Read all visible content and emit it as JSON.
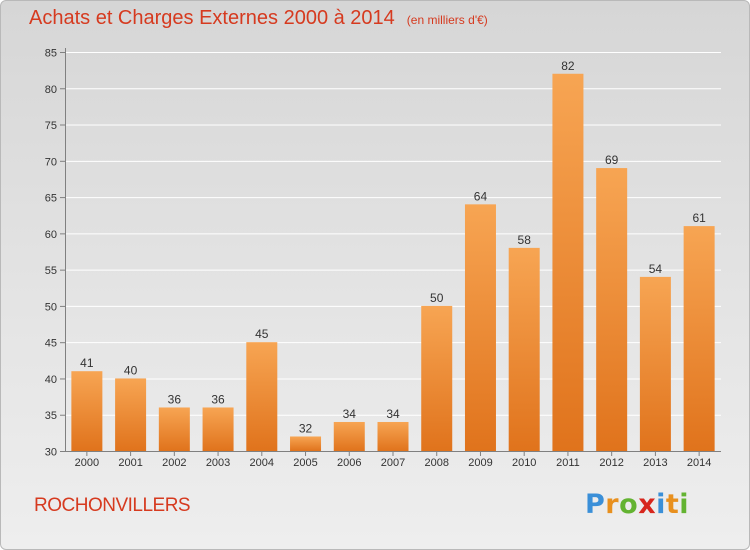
{
  "page": {
    "title": "Achats et Charges Externes 2000 à 2014",
    "unit_note": "(en milliers d'€)",
    "place": "ROCHONVILLERS",
    "brand": {
      "letters": [
        "P",
        "r",
        "o",
        "x",
        "i",
        "t",
        "i"
      ],
      "colors": [
        "#3a8fd8",
        "#e8901e",
        "#63b331",
        "#d7261d",
        "#3a8fd8",
        "#e8901e",
        "#63b331"
      ]
    }
  },
  "chart_data": {
    "type": "bar",
    "title": "Achats et Charges Externes 2000 à 2014",
    "subtitle": "(en milliers d'€)",
    "categories": [
      "2000",
      "2001",
      "2002",
      "2003",
      "2004",
      "2005",
      "2006",
      "2007",
      "2008",
      "2009",
      "2010",
      "2011",
      "2012",
      "2013",
      "2014"
    ],
    "values": [
      41,
      40,
      36,
      36,
      45,
      32,
      34,
      34,
      50,
      64,
      58,
      82,
      69,
      54,
      61
    ],
    "ylim": [
      30,
      85
    ],
    "yticks": [
      30,
      35,
      40,
      45,
      50,
      55,
      60,
      65,
      70,
      75,
      80,
      85
    ],
    "grid": true,
    "xlabel": "",
    "ylabel": "",
    "colors": {
      "bar_top": "#f7a553",
      "bar_bottom": "#e0731c",
      "grid": "#ffffff",
      "axis": "#808080",
      "text": "#333333"
    }
  }
}
